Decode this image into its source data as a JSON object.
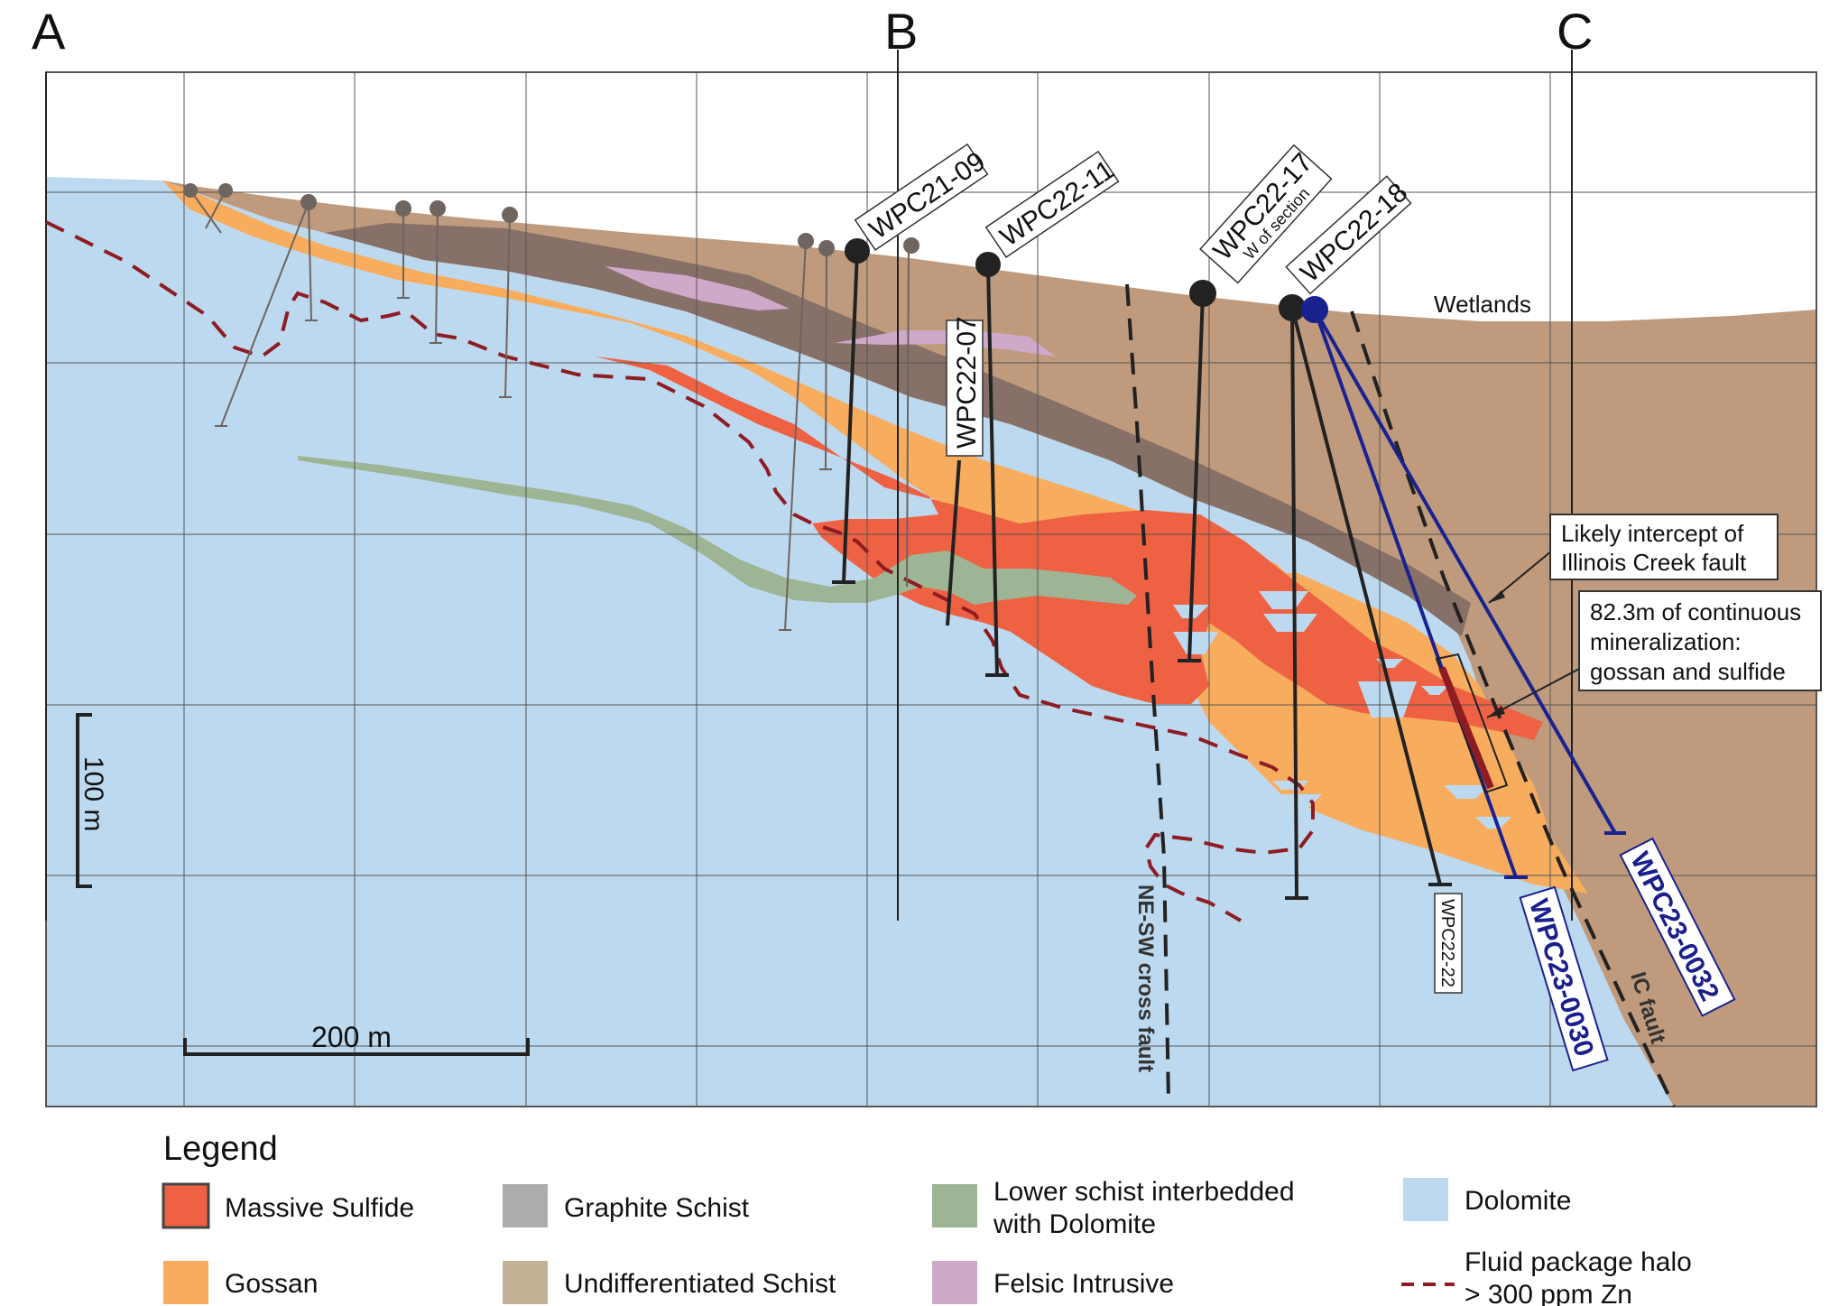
{
  "section_letters": [
    "A",
    "B",
    "C"
  ],
  "colors": {
    "massive_sulfide": "#ee6243",
    "gossan": "#f8ad5e",
    "graphite_schist": "#867067",
    "undifferentiated_schist": "#bf9a7c",
    "lower_schist": "#9db595",
    "felsic_intrusive": "#cfa9c9",
    "dolomite": "#bdd9ef",
    "halo": "#8e1c23",
    "blue_hole": "#1a2290",
    "legend_graphite_swatch": "#acacac",
    "legend_undiff_swatch": "#c3b295"
  },
  "drillholes": {
    "wpc21_09": "WPC21-09",
    "wpc22_11": "WPC22-11",
    "wpc22_07": "WPC22-07",
    "wpc22_17": "WPC22-17",
    "wpc22_17_sub": "W of section",
    "wpc22_18": "WPC22-18",
    "wpc22_22": "WPC22-22",
    "wpc23_0030": "WPC23-0030",
    "wpc23_0032": "WPC23-0032"
  },
  "labels": {
    "wetlands": "Wetlands",
    "ne_sw_fault": "NE-SW cross fault",
    "ic_fault": "IC fault",
    "vertical_scale": "100 m",
    "horizontal_scale": "200 m"
  },
  "callouts": {
    "illinois_line1": "Likely intercept of",
    "illinois_line2": "Illinois Creek fault",
    "mineral_line1": "82.3m of continuous",
    "mineral_line2": "mineralization:",
    "mineral_line3": "gossan and sulfide"
  },
  "legend": {
    "title": "Legend",
    "massive_sulfide": "Massive Sulfide",
    "gossan": "Gossan",
    "graphite_schist": "Graphite Schist",
    "undifferentiated_schist": "Undifferentiated Schist",
    "lower_schist_1": "Lower schist interbedded",
    "lower_schist_2": "with Dolomite",
    "felsic_intrusive": "Felsic Intrusive",
    "dolomite": "Dolomite",
    "halo_1": "Fluid package halo",
    "halo_2": "> 300 ppm Zn"
  }
}
